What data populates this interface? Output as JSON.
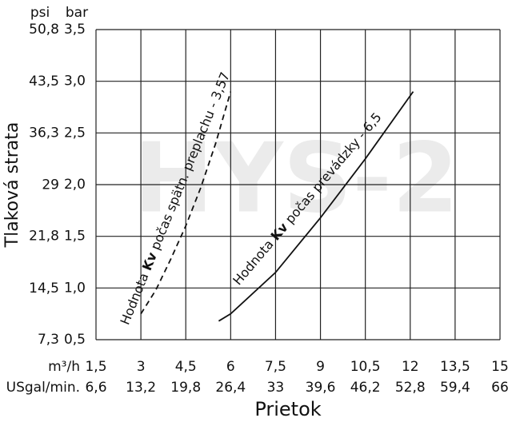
{
  "chart_data": {
    "type": "line",
    "watermark": "HYS-2",
    "y_label": "Tlaková strata",
    "y_unit": "bar",
    "y2_unit": "psi",
    "x_label": "Prietok",
    "x_unit": "m³/h",
    "x2_unit": "USgal/min.",
    "xlim": [
      1.5,
      15
    ],
    "xticks": [
      {
        "value": 1.5,
        "label": "1,5"
      },
      3,
      {
        "value": 4.5,
        "label": "4,5"
      },
      6,
      {
        "value": 7.5,
        "label": "7,5"
      },
      9,
      {
        "value": 10.5,
        "label": "10,5"
      },
      12,
      {
        "value": 13.5,
        "label": "13,5"
      },
      15
    ],
    "x2lim": [
      6.6,
      66
    ],
    "x2ticks": [
      {
        "value": 6.6,
        "label": "6,6"
      },
      {
        "value": 13.2,
        "label": "13,2"
      },
      {
        "value": 19.8,
        "label": "19,8"
      },
      {
        "value": 26.4,
        "label": "26,4"
      },
      33,
      {
        "value": 39.6,
        "label": "39,6"
      },
      {
        "value": 46.2,
        "label": "46,2"
      },
      {
        "value": 52.8,
        "label": "52,8"
      },
      {
        "value": 59.4,
        "label": "59,4"
      },
      66
    ],
    "ylim": [
      0.5,
      3.5
    ],
    "yticks": [
      {
        "value": 0.5,
        "label": "0,5"
      },
      {
        "value": 1.0,
        "label": "1,0"
      },
      {
        "value": 1.5,
        "label": "1,5"
      },
      {
        "value": 2.0,
        "label": "2,0"
      },
      {
        "value": 2.5,
        "label": "2,5"
      },
      {
        "value": 3.0,
        "label": "3,0"
      },
      {
        "value": 3.5,
        "label": "3,5"
      }
    ],
    "y2lim": [
      7.3,
      50.8
    ],
    "y2ticks": [
      {
        "value": 7.3,
        "label": "7,3"
      },
      {
        "value": 14.5,
        "label": "14,5"
      },
      {
        "value": 21.8,
        "label": "21,8"
      },
      29,
      {
        "value": 36.3,
        "label": "36,3"
      },
      {
        "value": 43.5,
        "label": "43,5"
      },
      {
        "value": 50.8,
        "label": "50,8"
      }
    ],
    "grid": true,
    "series": [
      {
        "color": "#111111",
        "dashed": true,
        "x": [
          3,
          3.5,
          4,
          4.5,
          5,
          5.5,
          6
        ],
        "values": [
          0.75,
          0.98,
          1.28,
          1.6,
          1.97,
          2.4,
          2.9
        ],
        "annotation": {
          "prefix": "Hodnota ",
          "bold": "Kv",
          "suffix": " počas spätn. preplachu - 3,57"
        }
      },
      {
        "color": "#111111",
        "dashed": false,
        "x": [
          5.6,
          6,
          7.5,
          9,
          10.5,
          12.1
        ],
        "values": [
          0.68,
          0.75,
          1.15,
          1.68,
          2.25,
          2.9
        ],
        "annotation": {
          "prefix": "Hodnota ",
          "bold": "Kv",
          "suffix": " počas prevádzky - 6,5"
        }
      }
    ]
  }
}
